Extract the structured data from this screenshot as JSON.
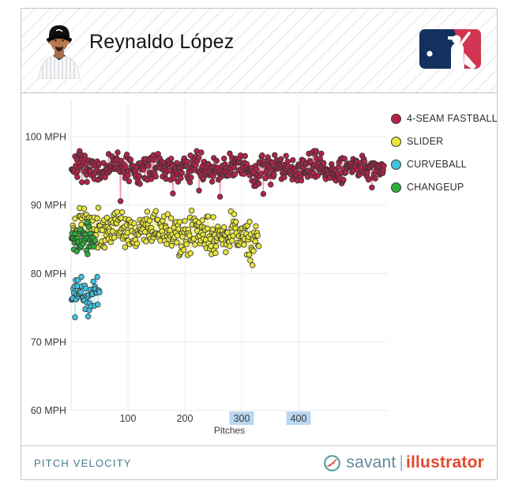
{
  "header": {
    "title": "Reynaldo López"
  },
  "footer": {
    "label": "PITCH VELOCITY",
    "brand": {
      "savant": "savant",
      "separator": "|",
      "illustrator": "illustrator"
    }
  },
  "colors": {
    "accent_teal": "#3f7d85",
    "brand_slate": "#66889b",
    "brand_red": "#e2492f",
    "highlight_blue": "#b9d7f2",
    "grid": "#ececec",
    "axis_text": "#3a3a3a",
    "mlb_navy": "#13305f",
    "mlb_red": "#d13551"
  },
  "chart_data": {
    "type": "scatter",
    "title": "PITCH VELOCITY",
    "xlabel": "Pitches",
    "ylabel": "MPH",
    "xlim": [
      0,
      557
    ],
    "ylim": [
      60,
      105.4
    ],
    "grid": true,
    "legend_position": "top-right",
    "y_ticks": [
      {
        "mph": 100,
        "label": "100 MPH"
      },
      {
        "mph": 90,
        "label": "90 MPH"
      },
      {
        "mph": 80,
        "label": "80 MPH"
      },
      {
        "mph": 70,
        "label": "70 MPH"
      },
      {
        "mph": 60,
        "label": "60 MPH"
      }
    ],
    "x_ticks": [
      {
        "pitches": 100,
        "label": "100",
        "highlighted": false
      },
      {
        "pitches": 200,
        "label": "200",
        "highlighted": false
      },
      {
        "pitches": 300,
        "label": "300",
        "highlighted": true
      },
      {
        "pitches": 400,
        "label": "400",
        "highlighted": true
      }
    ],
    "series": [
      {
        "name": "4-SEAM FASTBALL",
        "color": "#b32349",
        "line_color": "#e26b85",
        "count": 550,
        "mean_mph": 95.4,
        "sd_mph": 0.95,
        "min_mph": 89.6,
        "max_mph": 97.9,
        "trend_mph": 0.2,
        "dip_rate": 0.02,
        "dip_mph": 3.4,
        "seed": 7
      },
      {
        "name": "SLIDER",
        "color": "#e7e43c",
        "line_color": "#ecea79",
        "count": 330,
        "mean_mph": 86.2,
        "sd_mph": 1.25,
        "min_mph": 81.2,
        "max_mph": 89.6,
        "trend_mph": -1.6,
        "dip_rate": 0.03,
        "dip_mph": 2.2,
        "seed": 13
      },
      {
        "name": "CURVEBALL",
        "color": "#41c4de",
        "line_color": "#8fdeed",
        "count": 50,
        "mean_mph": 77.1,
        "sd_mph": 1.15,
        "min_mph": 71.7,
        "max_mph": 79.5,
        "trend_mph": -0.8,
        "dip_rate": 0.08,
        "dip_mph": 2.4,
        "seed": 3
      },
      {
        "name": "CHANGEUP",
        "color": "#2fae3e",
        "line_color": "#7bd089",
        "count": 42,
        "mean_mph": 85.0,
        "sd_mph": 1.0,
        "min_mph": 81.8,
        "max_mph": 87.5,
        "trend_mph": -0.4,
        "dip_rate": 0.05,
        "dip_mph": 1.6,
        "seed": 5
      }
    ],
    "draw_order": [
      1,
      3,
      2,
      0
    ],
    "point_radius": 3.3,
    "point_stroke": "#333333"
  }
}
